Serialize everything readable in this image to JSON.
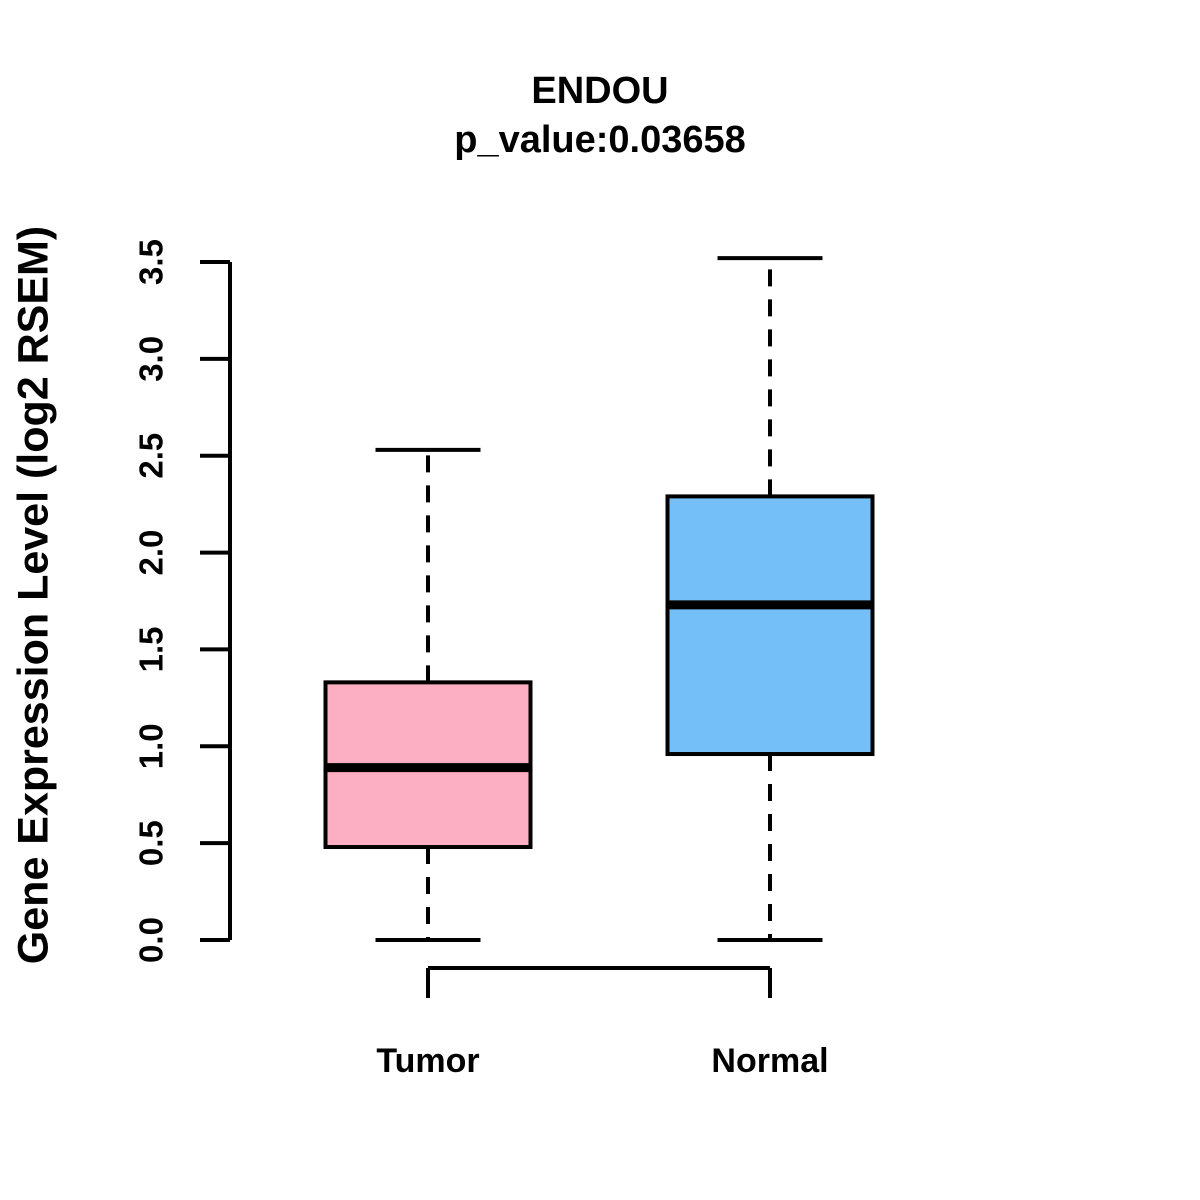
{
  "chart_data": {
    "type": "boxplot",
    "title": "ENDOU",
    "subtitle": "p_value:0.03658",
    "ylabel": "Gene Expression Level (log2 RSEM)",
    "xlabel": "",
    "ylim": [
      0.0,
      3.5
    ],
    "yticks": [
      "0.0",
      "0.5",
      "1.0",
      "1.5",
      "2.0",
      "2.5",
      "3.0",
      "3.5"
    ],
    "categories": [
      "Tumor",
      "Normal"
    ],
    "series": [
      {
        "name": "Tumor",
        "lower_whisker": 0.0,
        "q1": 0.48,
        "median": 0.89,
        "q3": 1.33,
        "upper_whisker": 2.53,
        "fill_color": "#FCAFC2"
      },
      {
        "name": "Normal",
        "lower_whisker": 0.0,
        "q1": 0.96,
        "median": 1.73,
        "q3": 2.29,
        "upper_whisker": 3.52,
        "fill_color": "#74BFF7"
      }
    ],
    "line_color": "#000000",
    "background_color": "#FFFFFF",
    "grid": false,
    "legend_position": "none",
    "whisker_style": "dashed"
  }
}
